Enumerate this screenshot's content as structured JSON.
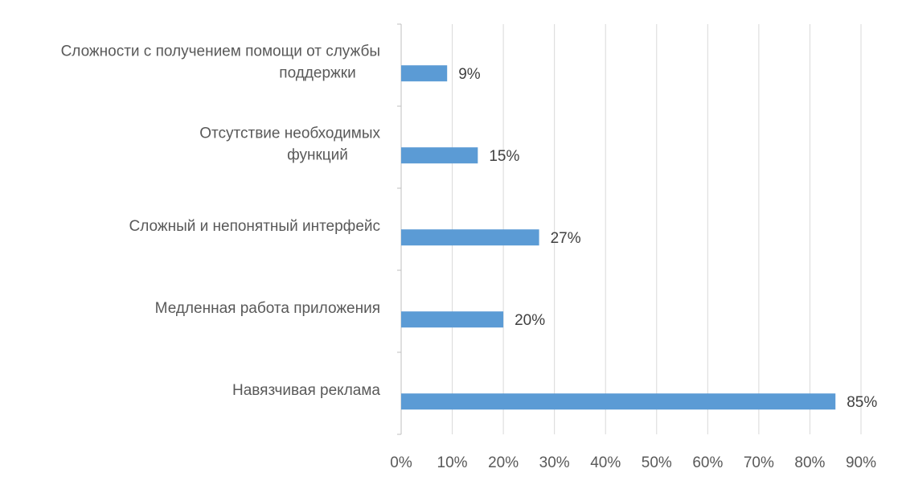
{
  "chart_data": {
    "type": "bar",
    "orientation": "horizontal",
    "categories": [
      [
        "Сложности с получением помощи от службы",
        "поддержки"
      ],
      [
        "Отсутствие необходимых",
        "функций"
      ],
      [
        "Сложный  и непонятный интерфейс"
      ],
      [
        "Медленная работа приложения"
      ],
      [
        "Навязчивая реклама"
      ]
    ],
    "values": [
      9,
      15,
      27,
      20,
      85
    ],
    "value_labels": [
      "9%",
      "15%",
      "27%",
      "20%",
      "85%"
    ],
    "xlim": [
      0,
      90
    ],
    "ticks": [
      0,
      10,
      20,
      30,
      40,
      50,
      60,
      70,
      80,
      90
    ],
    "tick_labels": [
      "0%",
      "10%",
      "20%",
      "30%",
      "40%",
      "50%",
      "60%",
      "70%",
      "80%",
      "90%"
    ],
    "grid": true,
    "legend": "none",
    "colors": {
      "bar": "#5B9BD5",
      "grid": "#D9D9D9",
      "axis": "#BFBFBF",
      "text": "#595959",
      "data_label": "#404040"
    }
  }
}
